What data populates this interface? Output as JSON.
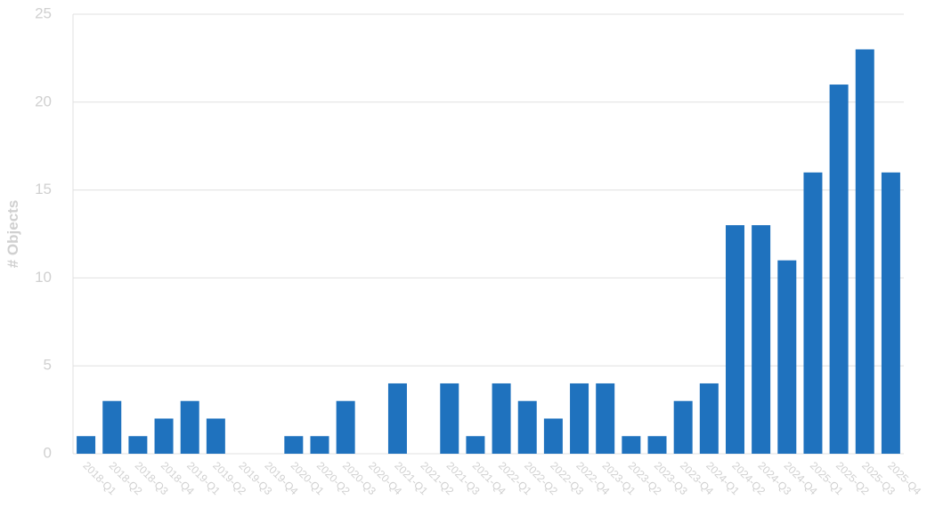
{
  "chart_data": {
    "type": "bar",
    "y_label": "# Objects",
    "categories": [
      "2018-Q1",
      "2018-Q2",
      "2018-Q3",
      "2018-Q4",
      "2019-Q1",
      "2019-Q2",
      "2019-Q3",
      "2019-Q4",
      "2020-Q1",
      "2020-Q2",
      "2020-Q3",
      "2020-Q4",
      "2021-Q1",
      "2021-Q2",
      "2021-Q3",
      "2021-Q4",
      "2022-Q1",
      "2022-Q2",
      "2022-Q3",
      "2022-Q4",
      "2023-Q1",
      "2023-Q2",
      "2023-Q3",
      "2023-Q4",
      "2024-Q1",
      "2024-Q2",
      "2024-Q3",
      "2024-Q4",
      "2025-Q1",
      "2025-Q2",
      "2025-Q3",
      "2025-Q4"
    ],
    "values": [
      1,
      3,
      1,
      2,
      3,
      2,
      0,
      0,
      1,
      1,
      3,
      0,
      4,
      0,
      4,
      1,
      4,
      3,
      2,
      4,
      4,
      1,
      1,
      3,
      4,
      13,
      13,
      11,
      16,
      21,
      23,
      16
    ],
    "color": "#1f72be",
    "ylim": [
      0,
      25
    ],
    "yticks": [
      0,
      5,
      10,
      15,
      20,
      25
    ],
    "grid": true
  }
}
